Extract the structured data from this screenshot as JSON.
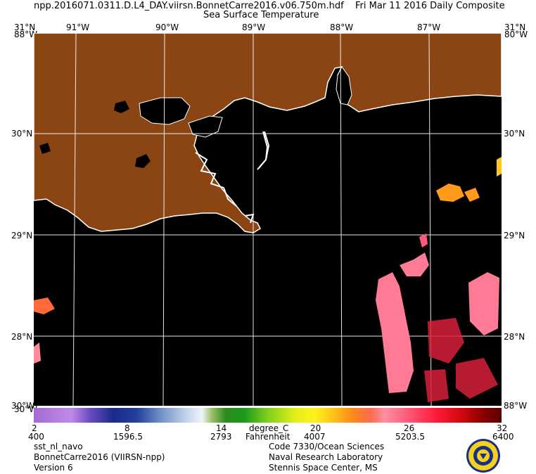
{
  "header": {
    "filename": "npp.2016071.0311.D.L4_DAY.viirsn.BonnetCarre2016.v06.750m.hdf",
    "date": "Fri Mar 11 2016 Daily Composite",
    "product": "Sea Surface Temperature"
  },
  "map": {
    "lon_labels": [
      "91°W",
      "90°W",
      "89°W",
      "88°W",
      "87°W"
    ],
    "lat_labels": [
      "30°N",
      "29°N",
      "28°N"
    ],
    "corner_top_lat": "31°N",
    "corner_top_left_lon": "88°W",
    "corner_top_right_lon": "80°W",
    "corner_bottom_lat": "30°W",
    "corner_bottom_right": "88°W",
    "land_color": "#8b4513",
    "water_color": "#000000",
    "coast_color": "#ffffff"
  },
  "colorbar": {
    "celsius_ticks": [
      "2",
      "8",
      "14",
      "20",
      "26",
      "32"
    ],
    "counts_ticks": [
      "400",
      "1596.5",
      "2793",
      "4007",
      "5203.5",
      "6400"
    ],
    "unit_c": "degree_C",
    "unit_f": "Fahrenheit"
  },
  "footer": {
    "left": [
      "sst_nl_navo",
      "BonnetCarre2016 (VIIRSN-npp)",
      "Version 6"
    ],
    "right": [
      "Code 7330/Ocean Sciences",
      "Naval Research Laboratory",
      "Stennis Space Center, MS"
    ]
  },
  "logo": {
    "name": "nrl-seal",
    "fill": "#f2d21a",
    "ring": "#1a2e8a"
  }
}
